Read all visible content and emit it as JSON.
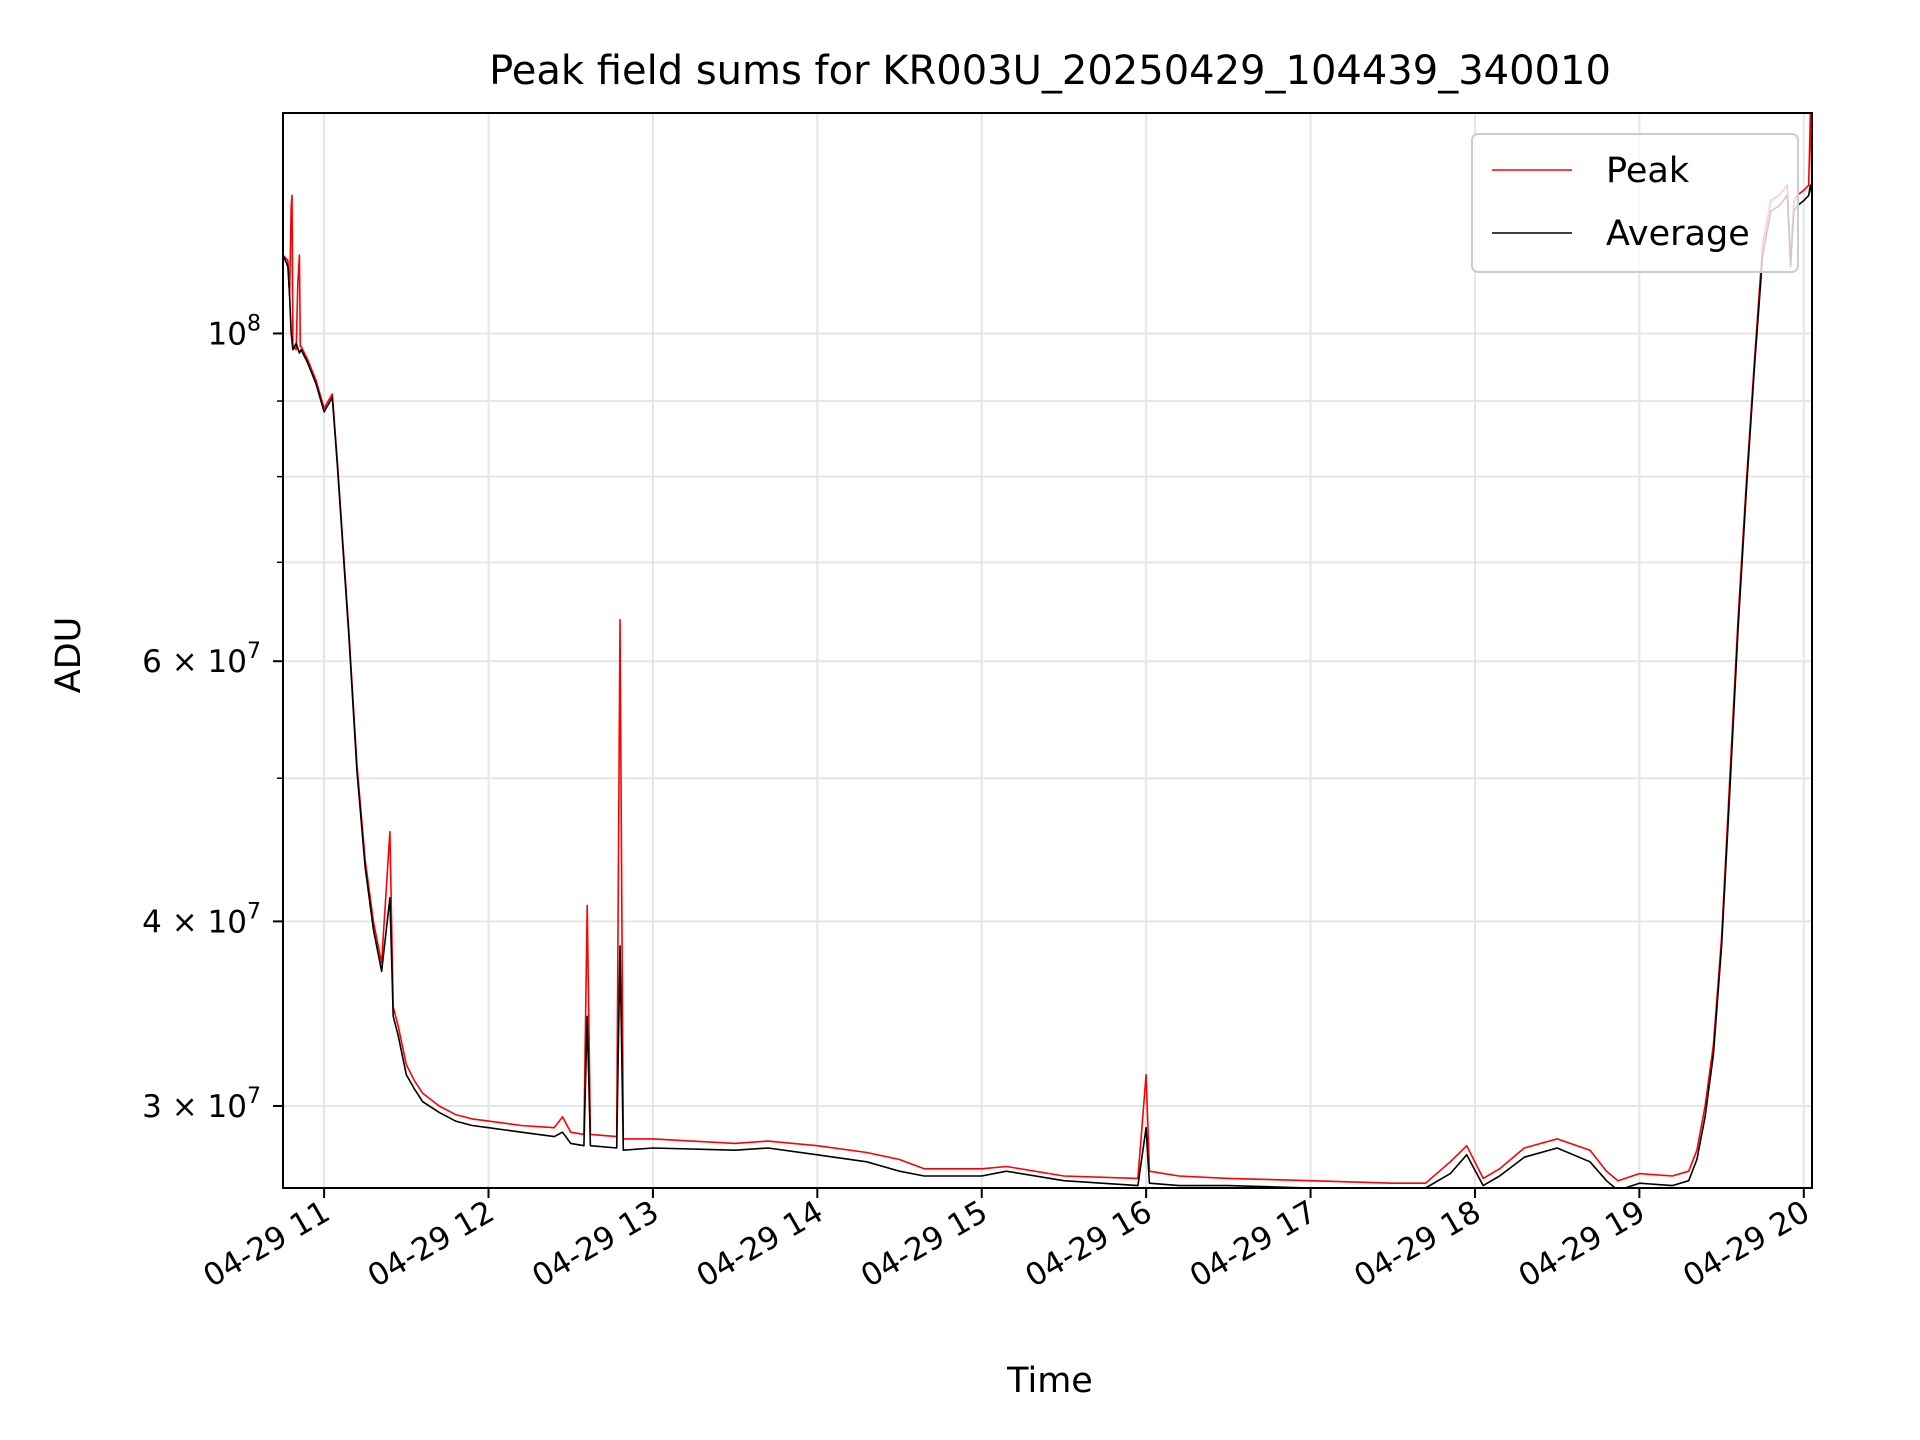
{
  "chart_data": {
    "type": "line",
    "title": "Peak field sums for KR003U_20250429_104439_340010",
    "xlabel": "Time",
    "ylabel": "ADU",
    "yscale": "log",
    "xlim": [
      10.75,
      20.05
    ],
    "ylim": [
      26400000,
      141000000
    ],
    "grid": true,
    "legend_position": "top-right",
    "x_ticks": [
      {
        "value": 11,
        "label": "04-29 11"
      },
      {
        "value": 12,
        "label": "04-29 12"
      },
      {
        "value": 13,
        "label": "04-29 13"
      },
      {
        "value": 14,
        "label": "04-29 14"
      },
      {
        "value": 15,
        "label": "04-29 15"
      },
      {
        "value": 16,
        "label": "04-29 16"
      },
      {
        "value": 17,
        "label": "04-29 17"
      },
      {
        "value": 18,
        "label": "04-29 18"
      },
      {
        "value": 19,
        "label": "04-29 19"
      },
      {
        "value": 20,
        "label": "04-29 20"
      }
    ],
    "y_ticks": [
      {
        "value": 30000000,
        "base": "3 × 10",
        "exp": "7"
      },
      {
        "value": 40000000,
        "base": "4 × 10",
        "exp": "7"
      },
      {
        "value": 60000000,
        "base": "6 × 10",
        "exp": "7"
      },
      {
        "value": 100000000,
        "base": "10",
        "exp": "8"
      }
    ],
    "y_minor_ticks": [
      50000000,
      70000000,
      80000000,
      90000000
    ],
    "series": [
      {
        "name": "Peak",
        "color": "#ff0000",
        "x": [
          10.75,
          10.78,
          10.79,
          10.8,
          10.805,
          10.81,
          10.83,
          10.84,
          10.85,
          10.855,
          10.86,
          10.9,
          10.95,
          11.0,
          11.05,
          11.08,
          11.15,
          11.2,
          11.25,
          11.3,
          11.35,
          11.4,
          11.42,
          11.45,
          11.5,
          11.55,
          11.6,
          11.7,
          11.8,
          11.9,
          12.0,
          12.2,
          12.4,
          12.45,
          12.5,
          12.58,
          12.6,
          12.62,
          12.78,
          12.8,
          12.82,
          13.0,
          13.5,
          13.7,
          14.0,
          14.3,
          14.5,
          14.65,
          15.0,
          15.15,
          15.5,
          15.95,
          16.0,
          16.02,
          16.2,
          16.5,
          17.0,
          17.5,
          17.7,
          17.85,
          17.95,
          18.05,
          18.15,
          18.3,
          18.5,
          18.7,
          18.8,
          18.87,
          19.0,
          19.2,
          19.3,
          19.35,
          19.4,
          19.45,
          19.5,
          19.55,
          19.6,
          19.65,
          19.7,
          19.75,
          19.8,
          19.85,
          19.9,
          19.92,
          19.94,
          19.96,
          20.0,
          20.03,
          20.04,
          20.05
        ],
        "y": [
          113000000,
          112000000,
          106000000,
          122000000,
          124000000,
          98000000,
          97500000,
          108000000,
          113000000,
          98000000,
          98000000,
          96000000,
          93000000,
          89000000,
          91000000,
          82000000,
          63000000,
          51000000,
          44000000,
          40000000,
          37500000,
          46000000,
          35000000,
          34000000,
          32000000,
          31200000,
          30600000,
          30000000,
          29600000,
          29400000,
          29300000,
          29100000,
          29000000,
          29500000,
          28800000,
          28700000,
          41000000,
          28700000,
          28600000,
          64000000,
          28500000,
          28500000,
          28300000,
          28400000,
          28200000,
          27900000,
          27600000,
          27200000,
          27200000,
          27300000,
          26900000,
          26800000,
          31500000,
          27100000,
          26900000,
          26800000,
          26700000,
          26600000,
          26600000,
          27500000,
          28200000,
          26800000,
          27200000,
          28100000,
          28500000,
          28000000,
          27100000,
          26700000,
          27000000,
          26900000,
          27100000,
          28000000,
          30000000,
          33000000,
          39000000,
          50000000,
          64000000,
          79000000,
          96000000,
          115000000,
          123000000,
          124000000,
          126000000,
          112000000,
          123000000,
          124000000,
          125000000,
          126000000,
          141000000,
          126000000
        ]
      },
      {
        "name": "Average",
        "color": "#000000",
        "x": [
          10.75,
          10.78,
          10.79,
          10.8,
          10.81,
          10.83,
          10.85,
          10.86,
          10.9,
          10.95,
          11.0,
          11.05,
          11.08,
          11.15,
          11.2,
          11.25,
          11.3,
          11.35,
          11.4,
          11.42,
          11.45,
          11.5,
          11.55,
          11.6,
          11.7,
          11.8,
          11.9,
          12.0,
          12.2,
          12.4,
          12.45,
          12.5,
          12.58,
          12.6,
          12.62,
          12.78,
          12.8,
          12.82,
          13.0,
          13.5,
          13.7,
          14.0,
          14.3,
          14.5,
          14.65,
          15.0,
          15.15,
          15.5,
          15.95,
          16.0,
          16.02,
          16.2,
          16.5,
          17.0,
          17.5,
          17.7,
          17.85,
          17.95,
          18.05,
          18.15,
          18.3,
          18.5,
          18.7,
          18.8,
          18.87,
          19.0,
          19.2,
          19.3,
          19.35,
          19.4,
          19.45,
          19.5,
          19.55,
          19.6,
          19.65,
          19.7,
          19.75,
          19.8,
          19.85,
          19.9,
          19.92,
          19.94,
          19.96,
          20.0,
          20.03,
          20.04,
          20.05
        ],
        "y": [
          113000000,
          111000000,
          106000000,
          100000000,
          97500000,
          98500000,
          97000000,
          97500000,
          95500000,
          92500000,
          88500000,
          90500000,
          81500000,
          62500000,
          50500000,
          43500000,
          39500000,
          37000000,
          41500000,
          34500000,
          33500000,
          31500000,
          30800000,
          30200000,
          29700000,
          29300000,
          29100000,
          29000000,
          28800000,
          28600000,
          28800000,
          28300000,
          28200000,
          34500000,
          28200000,
          28100000,
          38500000,
          28000000,
          28100000,
          28000000,
          28100000,
          27800000,
          27500000,
          27100000,
          26900000,
          26900000,
          27100000,
          26700000,
          26500000,
          29000000,
          26600000,
          26500000,
          26500000,
          26400000,
          26400000,
          26400000,
          27000000,
          27800000,
          26500000,
          26900000,
          27700000,
          28100000,
          27500000,
          26700000,
          26300000,
          26600000,
          26500000,
          26700000,
          27600000,
          29500000,
          32500000,
          38500000,
          49000000,
          63000000,
          78000000,
          95000000,
          113000000,
          121000000,
          122000000,
          124000000,
          111000000,
          121000000,
          122000000,
          123000000,
          124000000,
          126000000,
          124000000
        ]
      }
    ]
  }
}
